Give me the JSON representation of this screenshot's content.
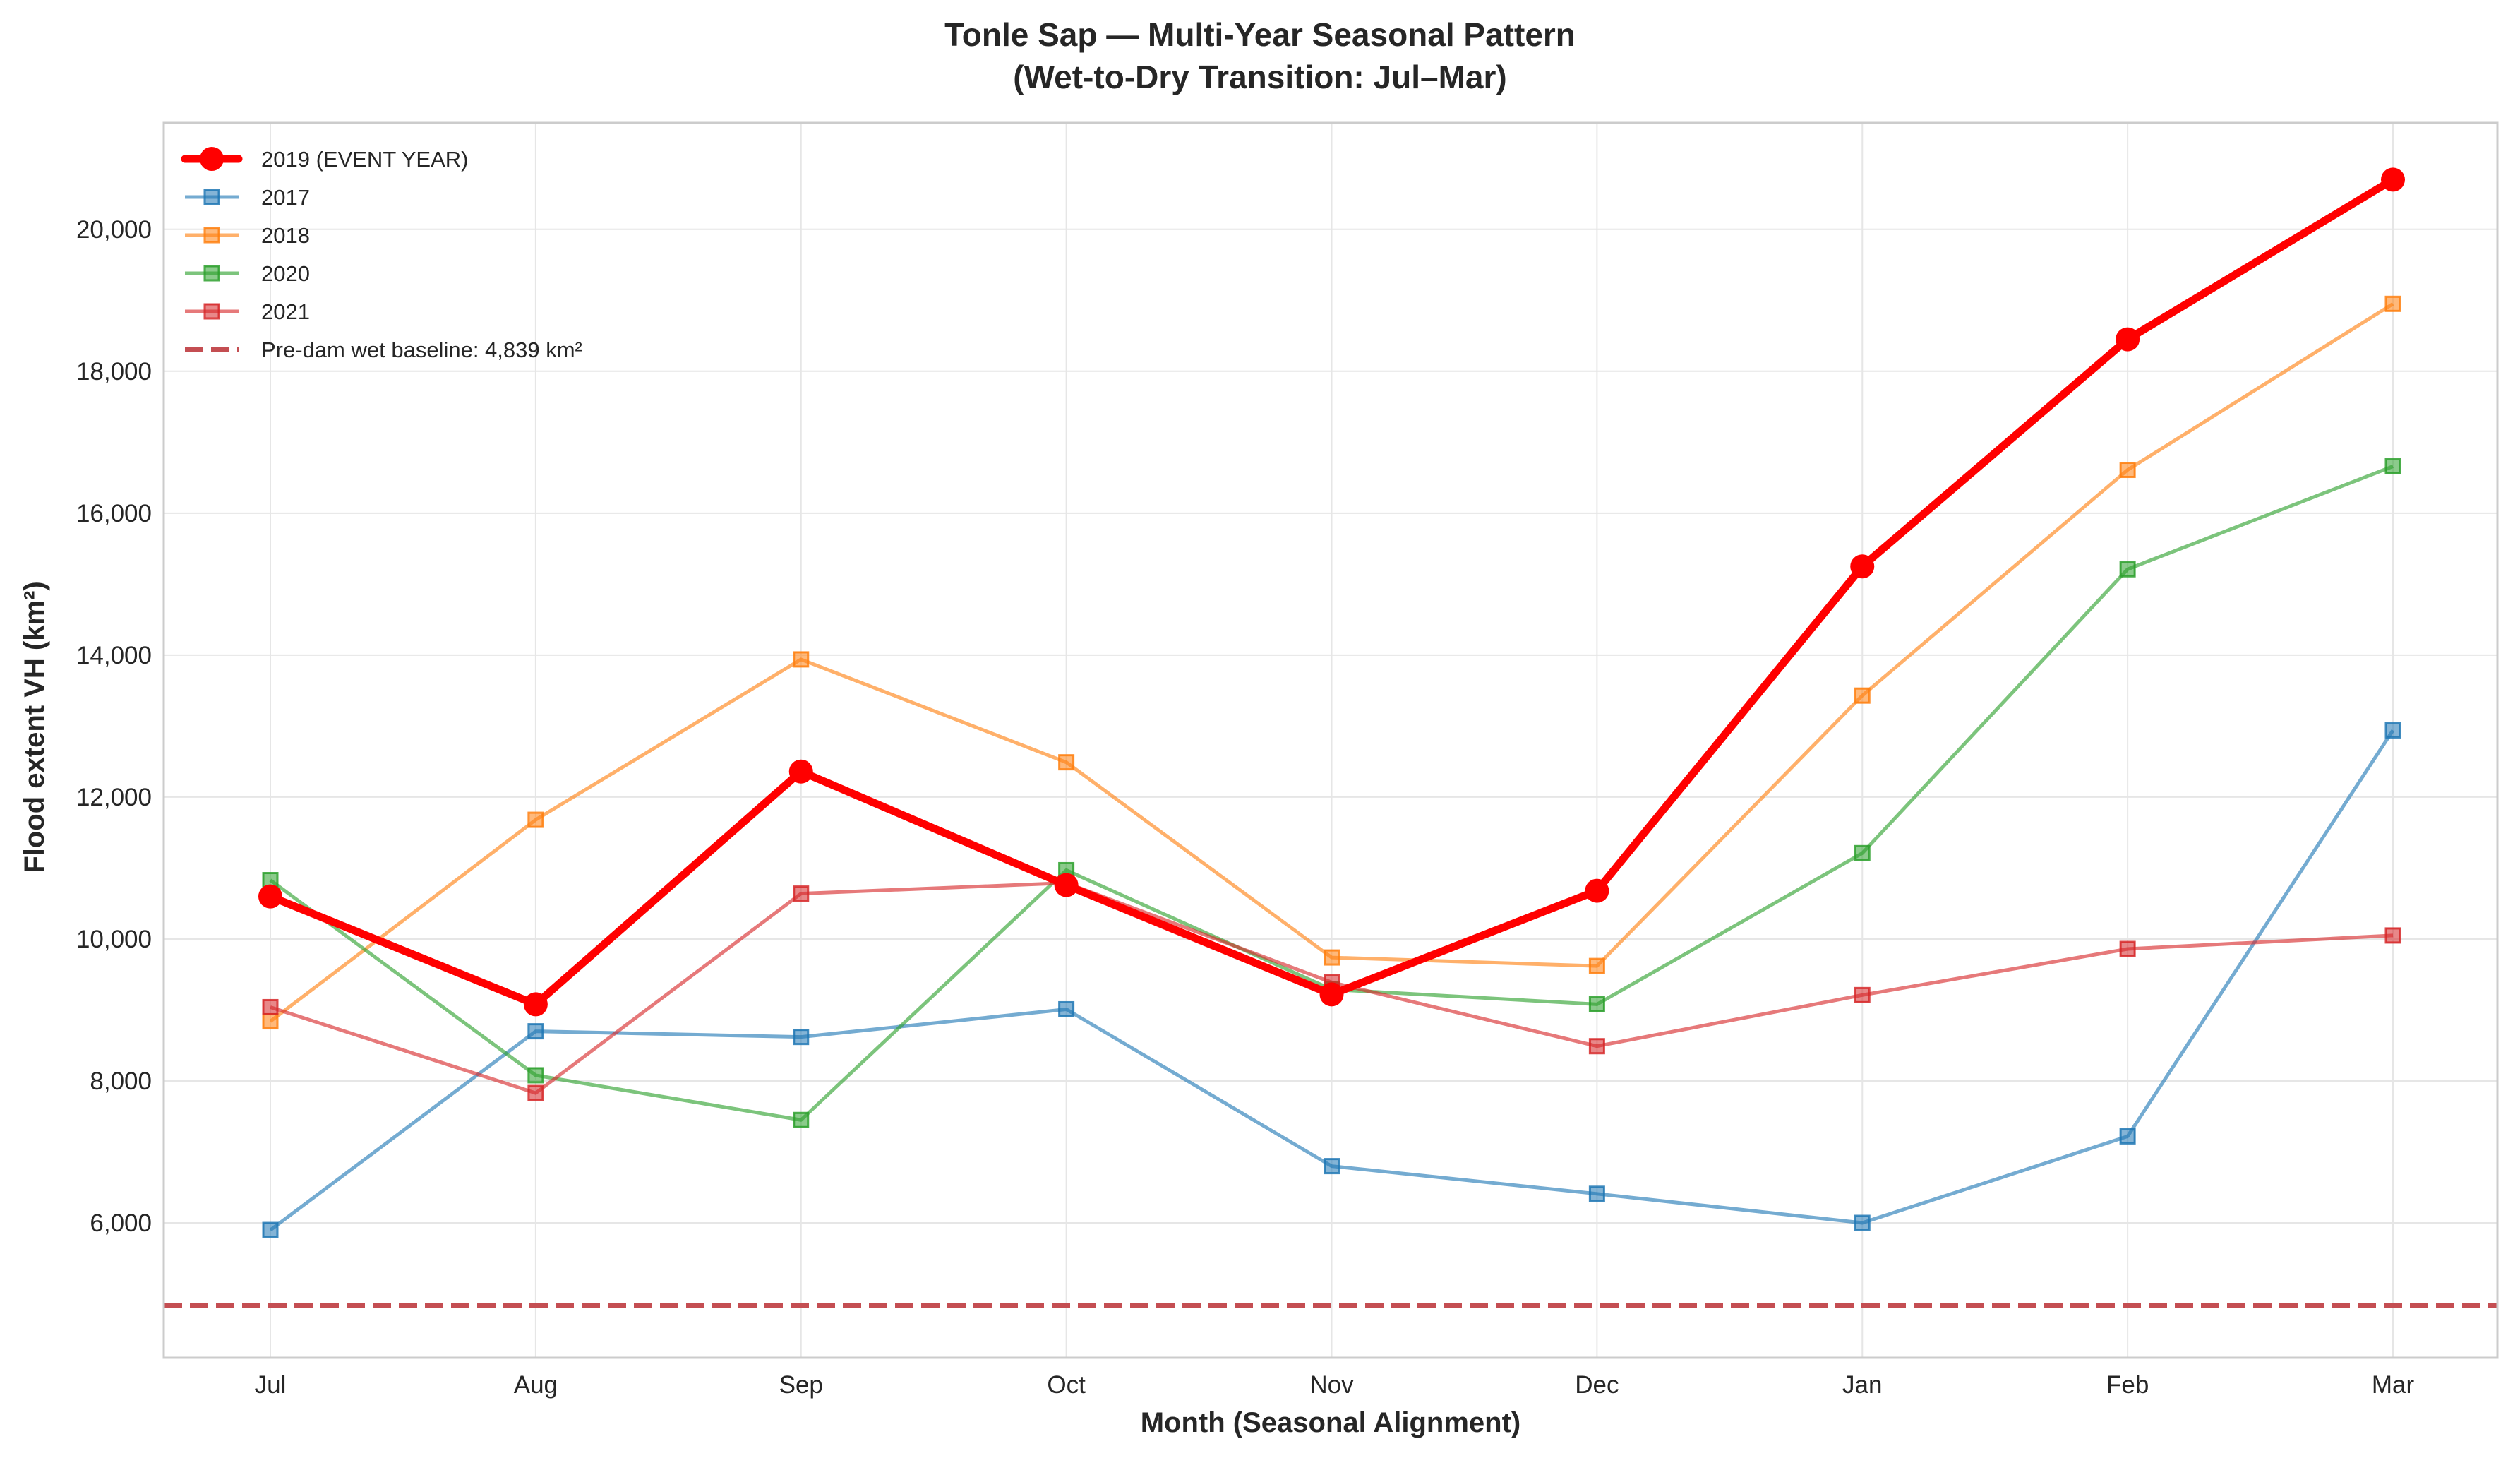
{
  "chart_data": {
    "type": "line",
    "title": "Tonle Sap — Multi-Year Seasonal Pattern",
    "subtitle": "(Wet-to-Dry Transition: Jul–Mar)",
    "xlabel": "Month (Seasonal Alignment)",
    "ylabel": "Flood extent VH (km²)",
    "categories": [
      "Jul",
      "Aug",
      "Sep",
      "Oct",
      "Nov",
      "Dec",
      "Jan",
      "Feb",
      "Mar"
    ],
    "ylim": [
      4100,
      21500
    ],
    "yticks": [
      6000,
      8000,
      10000,
      12000,
      14000,
      16000,
      18000,
      20000
    ],
    "ytick_labels": [
      "6,000",
      "8,000",
      "10,000",
      "12,000",
      "14,000",
      "16,000",
      "18,000",
      "20,000"
    ],
    "grid": true,
    "legend_position": "top-left",
    "series": [
      {
        "name": "2019 (EVENT YEAR)",
        "values": [
          10600,
          9080,
          12360,
          10760,
          9220,
          10680,
          15250,
          18450,
          20700
        ],
        "color": "#ff0000",
        "marker": "circle",
        "highlight": true
      },
      {
        "name": "2017",
        "values": [
          5900,
          8700,
          8620,
          9010,
          6800,
          6410,
          6000,
          7220,
          12940
        ],
        "color": "#1f77b4",
        "marker": "square"
      },
      {
        "name": "2018",
        "values": [
          8840,
          11680,
          13940,
          12490,
          9740,
          9620,
          13430,
          16610,
          18950
        ],
        "color": "#ff7f0e",
        "marker": "square"
      },
      {
        "name": "2020",
        "values": [
          10830,
          8080,
          7450,
          10970,
          9290,
          9080,
          11210,
          15210,
          16660
        ],
        "color": "#2ca02c",
        "marker": "square"
      },
      {
        "name": "2021",
        "values": [
          9040,
          7830,
          10640,
          10790,
          9390,
          8490,
          9210,
          9860,
          10050
        ],
        "color": "#d62728",
        "marker": "square"
      }
    ],
    "reference_line": {
      "name": "Pre-dam wet baseline: 4,839 km²",
      "value": 4839,
      "color": "#c44e52",
      "style": "dashed"
    }
  }
}
